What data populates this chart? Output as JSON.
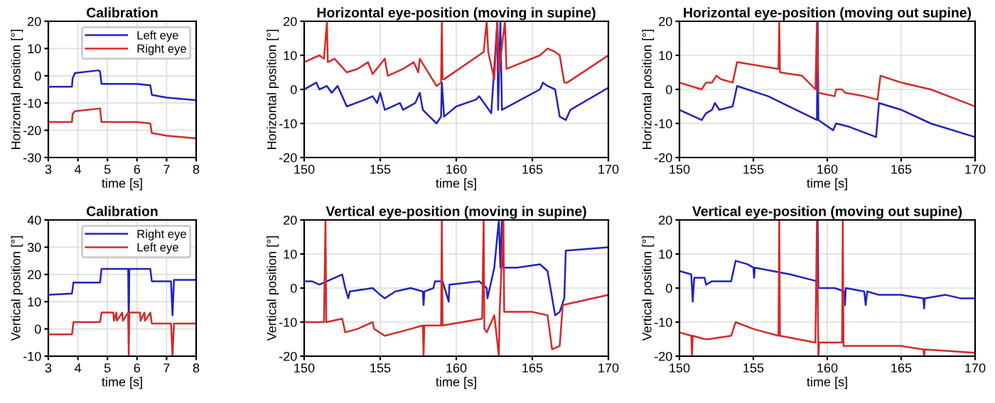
{
  "chart_data": [
    {
      "type": "line",
      "title": "Calibration",
      "xlabel": "time [s]",
      "ylabel": "Horizontal position [°]",
      "xlim": [
        3,
        8
      ],
      "xticks": [
        3,
        4,
        5,
        6,
        7,
        8
      ],
      "ylim": [
        -30,
        20
      ],
      "yticks": [
        -30,
        -20,
        -10,
        0,
        10,
        20
      ],
      "grid": true,
      "legend": "top right",
      "series": [
        {
          "name": "Left eye",
          "color": "#2222c0",
          "x": [
            3,
            3.8,
            3.82,
            3.9,
            4.7,
            4.75,
            4.8,
            6.0,
            6.45,
            6.5,
            7.0,
            8
          ],
          "values": [
            -4,
            -4,
            -1,
            1,
            2,
            1.5,
            -3,
            -3,
            -3.5,
            -7,
            -8,
            -9
          ]
        },
        {
          "name": "Right eye",
          "color": "#d42a2a",
          "x": [
            3,
            3.8,
            3.82,
            3.9,
            4.75,
            4.8,
            6.0,
            6.45,
            6.5,
            7.0,
            8
          ],
          "values": [
            -17,
            -17,
            -14,
            -13,
            -12,
            -17,
            -17,
            -17.5,
            -21,
            -22,
            -23
          ]
        }
      ]
    },
    {
      "type": "line",
      "title": "Horizontal eye-position (moving in supine)",
      "xlabel": "time [s]",
      "ylabel": "Horizontal position [°]",
      "xlim": [
        150,
        170
      ],
      "xticks": [
        150,
        155,
        160,
        165,
        170
      ],
      "ylim": [
        -20,
        20
      ],
      "yticks": [
        -20,
        -10,
        0,
        10,
        20
      ],
      "grid": true,
      "series": [
        {
          "color": "#2222c0",
          "x": [
            150,
            150.8,
            151,
            151.5,
            151.8,
            152.2,
            152.5,
            152.8,
            154,
            154.5,
            154.8,
            155,
            155.3,
            156.3,
            156.5,
            157.3,
            157.6,
            157.8,
            158.7,
            159,
            159.05,
            159.2,
            160,
            161.3,
            161.5,
            162.3,
            162.7,
            162.75,
            162.9,
            163,
            165.5,
            165.7,
            166,
            166.5,
            166.8,
            167.2,
            167.5,
            170
          ],
          "values": [
            0,
            2,
            0,
            1,
            -1,
            1,
            -2,
            -5,
            -3,
            -2,
            -4,
            -1,
            -6,
            -4,
            -6,
            -4,
            -1,
            -6,
            -10,
            -8,
            2,
            -8,
            -5,
            -3,
            -2,
            -7,
            20,
            -6,
            20,
            -6,
            0,
            2,
            1,
            0,
            -8,
            -9,
            -6,
            0.5
          ]
        },
        {
          "color": "#d42a2a",
          "x": [
            150,
            151,
            151.3,
            151.5,
            151.55,
            152,
            152.4,
            152.8,
            153.5,
            154.2,
            154.5,
            155.3,
            155.5,
            156.5,
            157.2,
            157.5,
            157.6,
            158.7,
            159,
            159.05,
            159.1,
            159.2,
            161.8,
            162,
            162.1,
            162.5,
            162.7,
            162.8,
            163.2,
            163.3,
            165.5,
            166,
            166.5,
            166.8,
            167.1,
            167.3,
            170
          ],
          "values": [
            8,
            10,
            9,
            20,
            8,
            9,
            7,
            5,
            6,
            8,
            4.5,
            9,
            4,
            6,
            8,
            5,
            9,
            1,
            2,
            20,
            3,
            3,
            11,
            20,
            11,
            3,
            20,
            5,
            20,
            6,
            10,
            12,
            11,
            10,
            2,
            2,
            10
          ]
        }
      ]
    },
    {
      "type": "line",
      "title": "Horizontal eye-position (moving out supine)",
      "xlabel": "time [s]",
      "ylabel": "Horizontal position [°]",
      "xlim": [
        150,
        170
      ],
      "xticks": [
        150,
        155,
        160,
        165,
        170
      ],
      "ylim": [
        -20,
        20
      ],
      "yticks": [
        -20,
        -10,
        0,
        10,
        20
      ],
      "grid": true,
      "series": [
        {
          "color": "#2222c0",
          "x": [
            150,
            151.5,
            151.8,
            152.2,
            152.4,
            152.7,
            153.6,
            153.9,
            156,
            159.3,
            159.35,
            159.4,
            160.4,
            160.6,
            161.5,
            163.3,
            163.5,
            165,
            167,
            170
          ],
          "values": [
            -6,
            -9,
            -7,
            -6,
            -4,
            -6,
            -5,
            1,
            -2,
            -9,
            20,
            -9,
            -12,
            -10,
            -11,
            -14,
            -4,
            -6,
            -10,
            -14
          ]
        },
        {
          "color": "#d42a2a",
          "x": [
            150,
            151.5,
            151.8,
            152.2,
            152.5,
            152.8,
            153.6,
            153.9,
            156.7,
            156.75,
            156.8,
            158.3,
            159.2,
            159.3,
            159.4,
            160.5,
            160.6,
            161,
            161.2,
            162.5,
            163.4,
            163.6,
            165,
            167,
            170
          ],
          "values": [
            2,
            0,
            2,
            2,
            4,
            3,
            2,
            8,
            6,
            20,
            5,
            4,
            0,
            20,
            -1,
            -2,
            0,
            0,
            -1,
            -2,
            -3,
            4,
            2,
            0,
            -5
          ]
        }
      ]
    },
    {
      "type": "line",
      "title": "Calibration",
      "xlabel": "time [s]",
      "ylabel": "Vertical position [°]",
      "xlim": [
        3,
        8
      ],
      "xticks": [
        3,
        4,
        5,
        6,
        7,
        8
      ],
      "ylim": [
        -10,
        40
      ],
      "yticks": [
        -10,
        0,
        10,
        20,
        30,
        40
      ],
      "grid": true,
      "legend": "top right",
      "series": [
        {
          "name": "Right eye",
          "color": "#2222c0",
          "x": [
            3,
            3.8,
            3.85,
            4.75,
            4.8,
            5.7,
            5.72,
            5.74,
            6.45,
            6.5,
            7.15,
            7.2,
            7.25,
            8
          ],
          "values": [
            12.5,
            13,
            17,
            17,
            22,
            22,
            0,
            22,
            22,
            17.5,
            17.5,
            5,
            18,
            18
          ]
        },
        {
          "name": "Left eye",
          "color": "#d42a2a",
          "x": [
            3,
            3.8,
            3.85,
            4.75,
            4.8,
            5.2,
            5.22,
            5.3,
            5.32,
            5.5,
            5.52,
            5.7,
            5.72,
            5.74,
            6.1,
            6.12,
            6.25,
            6.27,
            6.45,
            6.5,
            7.15,
            7.2,
            7.25,
            8
          ],
          "values": [
            -2,
            -2,
            2.5,
            2.5,
            6,
            6,
            3,
            6,
            3,
            6,
            3,
            6,
            -10,
            6,
            6,
            3,
            6,
            3,
            6,
            2,
            2,
            -10,
            2,
            2
          ]
        }
      ]
    },
    {
      "type": "line",
      "title": "Vertical eye-position (moving in supine)",
      "xlabel": "time [s]",
      "ylabel": "Vertical position [°]",
      "xlim": [
        150,
        170
      ],
      "xticks": [
        150,
        155,
        160,
        165,
        170
      ],
      "ylim": [
        -20,
        20
      ],
      "yticks": [
        -20,
        -10,
        0,
        10,
        20
      ],
      "grid": true,
      "series": [
        {
          "color": "#2222c0",
          "x": [
            150,
            150.5,
            151,
            151.5,
            152,
            152.5,
            152.7,
            152.9,
            153,
            154.5,
            155,
            155.3,
            156,
            157,
            157.8,
            157.85,
            157.9,
            158.5,
            158.6,
            159.1,
            159.5,
            159.55,
            161.5,
            162,
            162.05,
            162.2,
            162.5,
            162.8,
            162.9,
            163,
            163.1,
            164,
            165.5,
            166,
            166.5,
            166.8,
            167.1,
            167.2,
            170
          ],
          "values": [
            2,
            2,
            1,
            2,
            3,
            4,
            0,
            -3,
            -1,
            0,
            -2,
            -3,
            -1,
            0,
            -1,
            -5,
            -1,
            0,
            2,
            2,
            -4,
            1,
            2,
            0,
            -3,
            0,
            6,
            20,
            6,
            20,
            6,
            6,
            7,
            5,
            -8,
            -7,
            -3,
            11,
            12
          ]
        },
        {
          "color": "#d42a2a",
          "x": [
            150,
            151.3,
            151.4,
            151.45,
            152.5,
            152.7,
            153.5,
            154.5,
            154.6,
            155.3,
            157,
            157.8,
            157.85,
            157.9,
            159,
            159.05,
            159.1,
            161.7,
            161.8,
            161.85,
            162,
            162.5,
            162.8,
            162.85,
            163.1,
            163.15,
            165,
            166,
            166.3,
            166.8,
            167,
            170
          ],
          "values": [
            -10,
            -10,
            20,
            -10,
            -9,
            -13,
            -12,
            -10,
            -12,
            -14,
            -12,
            -11,
            -20,
            -11,
            -11,
            20,
            -11,
            -9,
            20,
            -12,
            -13,
            -8,
            -20,
            -7,
            20,
            -7,
            -7,
            -8,
            -18,
            -17,
            -5,
            -2
          ]
        }
      ]
    },
    {
      "type": "line",
      "title": "Vertical eye-position (moving out supine)",
      "xlabel": "time [s]",
      "ylabel": "Vertical position [°]",
      "xlim": [
        150,
        170
      ],
      "xticks": [
        150,
        155,
        160,
        165,
        170
      ],
      "ylim": [
        -20,
        20
      ],
      "yticks": [
        -20,
        -10,
        0,
        10,
        20
      ],
      "grid": true,
      "series": [
        {
          "color": "#2222c0",
          "x": [
            150,
            150.8,
            150.9,
            151,
            151.7,
            151.8,
            152.2,
            153.5,
            153.8,
            154.6,
            155,
            155.05,
            155.1,
            157.5,
            159.3,
            159.35,
            159.4,
            160.5,
            161.15,
            161.2,
            161.25,
            162.5,
            162.6,
            162.7,
            163.5,
            165,
            166.5,
            166.55,
            166.6,
            168,
            169,
            170
          ],
          "values": [
            5,
            4,
            -4,
            3,
            3,
            1,
            2,
            2,
            8,
            7,
            6,
            3,
            6,
            4,
            2,
            20,
            0,
            0,
            -1,
            -5,
            0,
            -1,
            -5,
            -1,
            -2,
            -2,
            -3,
            -6,
            -3,
            -2,
            -3,
            -3
          ]
        },
        {
          "color": "#d42a2a",
          "x": [
            150,
            150.8,
            150.85,
            150.9,
            151.7,
            152,
            153.5,
            153.8,
            155,
            156.7,
            156.75,
            156.8,
            159.2,
            159.3,
            159.4,
            159.45,
            161,
            161.05,
            161.1,
            163,
            165,
            166.5,
            166.55,
            166.6,
            170
          ],
          "values": [
            -13,
            -14,
            -20,
            -14,
            -15,
            -15,
            -14,
            -10,
            -12,
            -14,
            20,
            -14,
            -16,
            20,
            -20,
            -16,
            -16,
            20,
            -17,
            -17,
            -17,
            -18,
            -20,
            -18,
            -19
          ]
        }
      ]
    }
  ]
}
